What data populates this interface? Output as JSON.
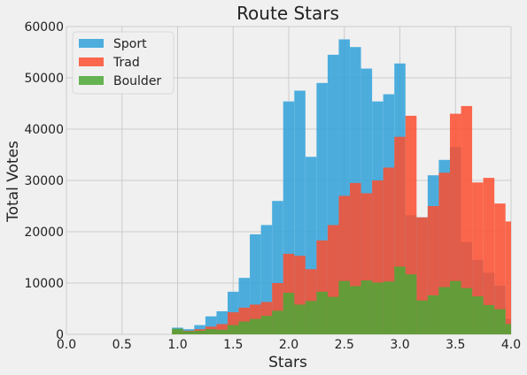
{
  "chart_data": {
    "type": "bar",
    "title": "Route Stars",
    "xlabel": "Stars",
    "ylabel": "Total Votes",
    "xlim": [
      0.0,
      4.0
    ],
    "ylim": [
      0,
      60000
    ],
    "xticks": [
      "0.0",
      "0.5",
      "1.0",
      "1.5",
      "2.0",
      "2.5",
      "3.0",
      "3.5",
      "4.0"
    ],
    "yticks": [
      "0",
      "10000",
      "20000",
      "30000",
      "40000",
      "50000",
      "60000"
    ],
    "grid": true,
    "legend": "top-left",
    "bin_edges": [
      0.95,
      1.05,
      1.15,
      1.25,
      1.35,
      1.45,
      1.55,
      1.65,
      1.75,
      1.85,
      1.95,
      2.05,
      2.15,
      2.25,
      2.35,
      2.45,
      2.55,
      2.65,
      2.75,
      2.85,
      2.95,
      3.05,
      3.15,
      3.25,
      3.35,
      3.45,
      3.55,
      3.65,
      3.75,
      3.85,
      3.95,
      4.0
    ],
    "series": [
      {
        "name": "Sport",
        "color": "#30a2da",
        "values": [
          1300,
          1000,
          1800,
          3500,
          4500,
          8300,
          11000,
          19500,
          21300,
          26000,
          45400,
          47500,
          34600,
          49000,
          54500,
          57500,
          56000,
          51800,
          45400,
          46800,
          52800,
          23200,
          22800,
          31000,
          34000,
          36500,
          18000,
          14500,
          12000,
          9500,
          3000
        ]
      },
      {
        "name": "Trad",
        "color": "#fc4f30",
        "values": [
          900,
          700,
          1000,
          1500,
          2000,
          4300,
          5200,
          5800,
          6300,
          10000,
          15700,
          15300,
          12700,
          18300,
          21300,
          27000,
          29500,
          27500,
          30000,
          32500,
          38500,
          42600,
          22800,
          25000,
          31500,
          43000,
          44500,
          29600,
          30500,
          25500,
          22000
        ]
      },
      {
        "name": "Boulder",
        "color": "#4ea836",
        "values": [
          1100,
          600,
          700,
          1000,
          900,
          1800,
          2500,
          3000,
          3600,
          4600,
          8100,
          5800,
          6500,
          8300,
          7300,
          10400,
          9400,
          10500,
          10100,
          10300,
          13200,
          11700,
          6600,
          7600,
          9200,
          10400,
          9000,
          7400,
          5700,
          4900,
          2000
        ]
      }
    ]
  }
}
